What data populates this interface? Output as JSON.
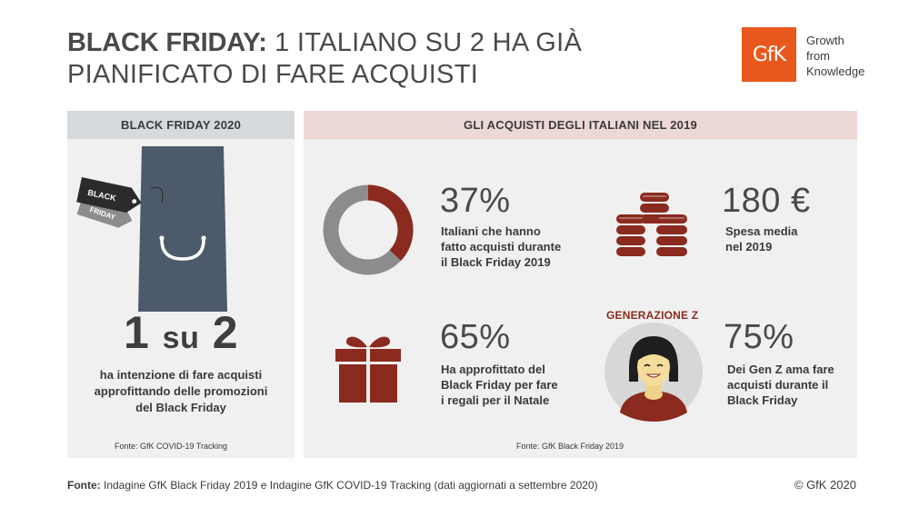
{
  "header": {
    "title_bold": "BLACK FRIDAY:",
    "title_rest": "1 ITALIANO SU 2 HA GIÀ",
    "title_line2": "PIANIFICATO DI FARE ACQUISTI"
  },
  "logo": {
    "mark": "GfK",
    "line1": "Growth",
    "line2": "from",
    "line3": "Knowledge",
    "color": "#e8581c"
  },
  "left_panel": {
    "header": "BLACK FRIDAY 2020",
    "tag_line1": "BLACK",
    "tag_line2": "FRIDAY",
    "big_number_a": "1",
    "big_word": "su",
    "big_number_b": "2",
    "desc_line1": "ha intenzione di fare acquisti",
    "desc_line2": "approfittando delle  promozioni",
    "desc_line3": "del Black Friday",
    "source": "Fonte: GfK COVID-19 Tracking"
  },
  "right_panel": {
    "header": "GLI ACQUISTI DEGLI ITALIANI NEL 2019",
    "stats": [
      {
        "value": "37%",
        "line1": "Italiani che hanno",
        "line2": "fatto acquisti durante",
        "line3": "il Black Friday 2019",
        "icon": "donut-chart-icon",
        "fraction": 0.37
      },
      {
        "value": "180 €",
        "line1": "Spesa media",
        "line2": "nel 2019",
        "icon": "coin-stacks-icon"
      },
      {
        "value": "65%",
        "line1": "Ha approfittato del",
        "line2": "Black Friday per fare",
        "line3": "i regali per il Natale",
        "icon": "gift-box-icon"
      },
      {
        "value": "75%",
        "line1": "Dei Gen Z ama fare",
        "line2": "acquisti durante il",
        "line3": "Black Friday",
        "label": "GENERAZIONE Z",
        "icon": "young-woman-avatar-icon"
      }
    ],
    "source": "Fonte: GfK Black Friday 2019"
  },
  "footer": {
    "label": "Fonte:",
    "text": "Indagine GfK Black Friday 2019 e Indagine GfK COVID-19 Tracking (dati aggiornati a settembre 2020)",
    "copyright": "© GfK 2020"
  },
  "colors": {
    "accent_red": "#8b2a1e",
    "donut_grey": "#8c8c8c",
    "bag_slate": "#4d5a6b",
    "panel_bg": "#f0f0f0",
    "header_left_bg": "#d6dadd",
    "header_right_bg": "#ecd9d6"
  }
}
